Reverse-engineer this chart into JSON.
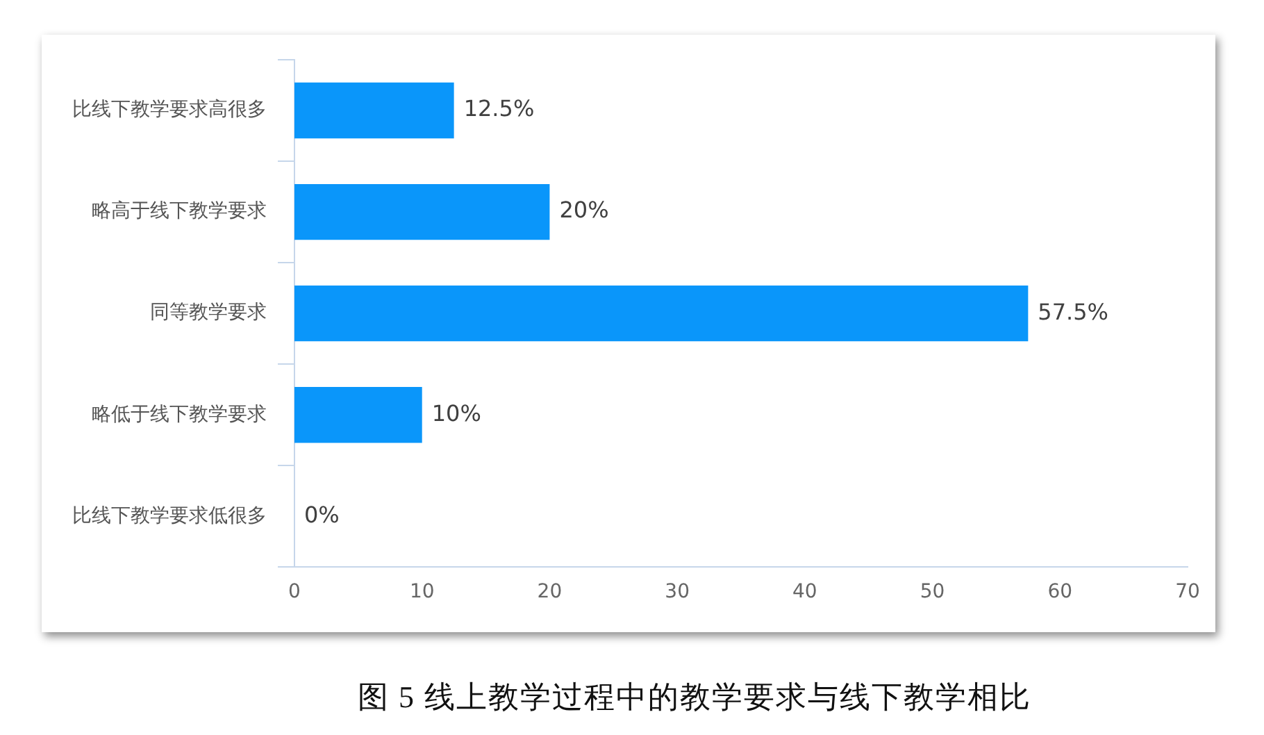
{
  "chart_data": {
    "type": "bar",
    "orientation": "horizontal",
    "title": "图 5 线上教学过程中的教学要求与线下教学相比",
    "categories": [
      "比线下教学要求高很多",
      "略高于线下教学要求",
      "同等教学要求",
      "略低于线下教学要求",
      "比线下教学要求低很多"
    ],
    "values": [
      12.5,
      20,
      57.5,
      10,
      0
    ],
    "value_labels": [
      "12.5%",
      "20%",
      "57.5%",
      "10%",
      "0%"
    ],
    "color": "#0a96fa",
    "xlim": [
      0,
      70
    ],
    "xticks": [
      0,
      10,
      20,
      30,
      40,
      50,
      60,
      70
    ],
    "grid": false,
    "legend": false
  }
}
